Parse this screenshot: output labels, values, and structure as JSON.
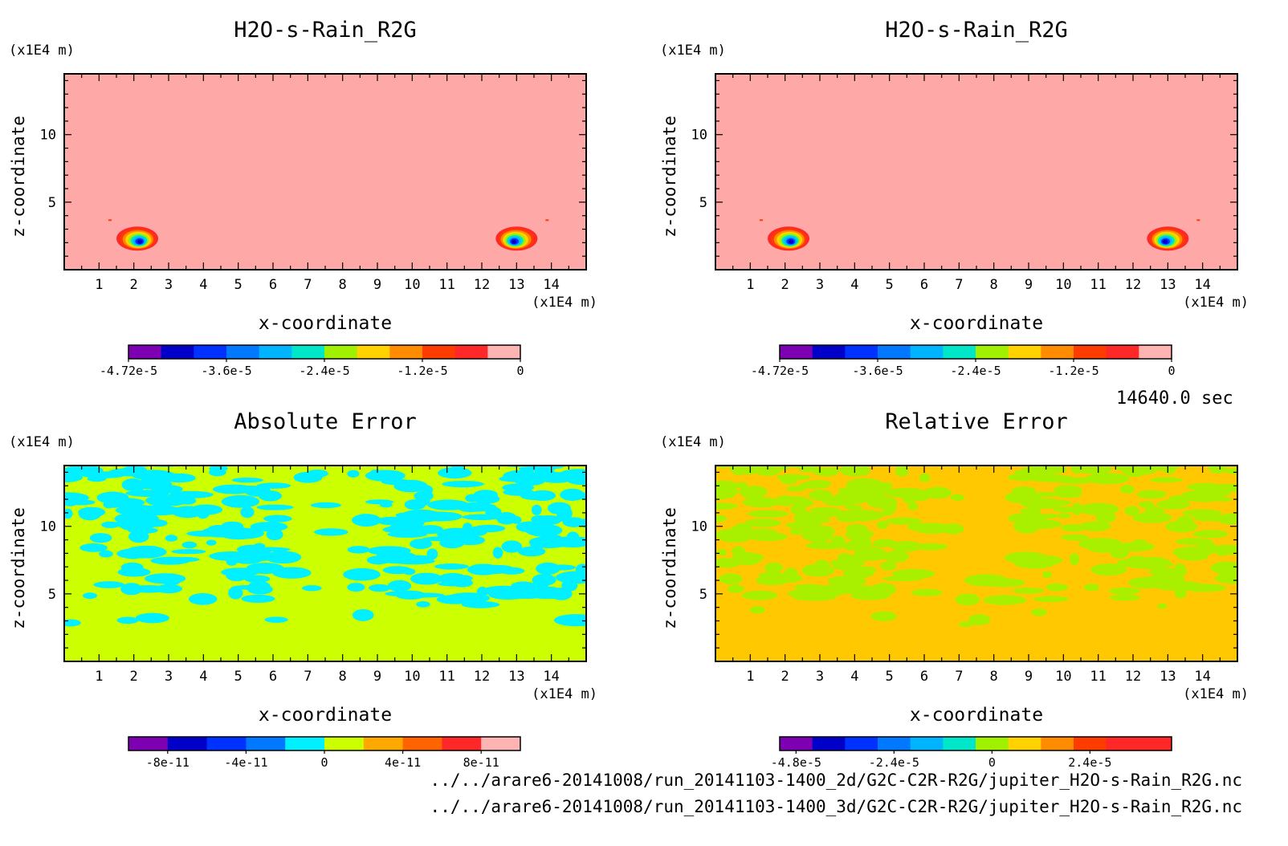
{
  "time_label": "14640.0 sec",
  "footer": {
    "path_2d": "../../arare6-20141008/run_20141103-1400_2d/G2C-C2R-R2G/jupiter_H2O-s-Rain_R2G.nc",
    "path_3d": "../../arare6-20141008/run_20141103-1400_3d/G2C-C2R-R2G/jupiter_H2O-s-Rain_R2G.nc"
  },
  "chart_data": [
    {
      "type": "heatmap",
      "title": "H2O-s-Rain_R2G",
      "xlabel": "x-coordinate",
      "ylabel": "z-coordinate",
      "x_unit": "(x1E4 m)",
      "y_unit": "(x1E4 m)",
      "xlim": [
        0,
        15
      ],
      "ylim": [
        0,
        14.5
      ],
      "x_ticks": [
        "1",
        "2",
        "3",
        "4",
        "5",
        "6",
        "7",
        "8",
        "9",
        "10",
        "11",
        "12",
        "13",
        "14"
      ],
      "y_ticks": [
        "5",
        "10"
      ],
      "background_color": "#ffa8a8",
      "features": [
        {
          "x": 2.1,
          "z": 2.3,
          "value": -4.72e-05
        },
        {
          "x": 13.0,
          "z": 2.3,
          "value": -4.72e-05
        }
      ],
      "colorbar": {
        "colors": [
          "#7d00b3",
          "#0000c8",
          "#0032ff",
          "#0078ff",
          "#00b4ff",
          "#00e6c8",
          "#a0f000",
          "#ffd200",
          "#ff8c00",
          "#ff3c00",
          "#ff2828",
          "#ffb4b4"
        ],
        "labels": [
          "-4.72e-5",
          "-3.6e-5",
          "-2.4e-5",
          "-1.2e-5",
          "0"
        ]
      }
    },
    {
      "type": "heatmap",
      "title": "H2O-s-Rain_R2G",
      "xlabel": "x-coordinate",
      "ylabel": "z-coordinate",
      "x_unit": "(x1E4 m)",
      "y_unit": "(x1E4 m)",
      "xlim": [
        0,
        15
      ],
      "ylim": [
        0,
        14.5
      ],
      "x_ticks": [
        "1",
        "2",
        "3",
        "4",
        "5",
        "6",
        "7",
        "8",
        "9",
        "10",
        "11",
        "12",
        "13",
        "14"
      ],
      "y_ticks": [
        "5",
        "10"
      ],
      "background_color": "#ffa8a8",
      "features": [
        {
          "x": 2.1,
          "z": 2.3,
          "value": -4.72e-05
        },
        {
          "x": 13.0,
          "z": 2.3,
          "value": -4.72e-05
        }
      ],
      "colorbar": {
        "colors": [
          "#7d00b3",
          "#0000c8",
          "#0032ff",
          "#0078ff",
          "#00b4ff",
          "#00e6c8",
          "#a0f000",
          "#ffd200",
          "#ff8c00",
          "#ff3c00",
          "#ff2828",
          "#ffb4b4"
        ],
        "labels": [
          "-4.72e-5",
          "-3.6e-5",
          "-2.4e-5",
          "-1.2e-5",
          "0"
        ]
      }
    },
    {
      "type": "heatmap",
      "title": "Absolute Error",
      "xlabel": "x-coordinate",
      "ylabel": "z-coordinate",
      "x_unit": "(x1E4 m)",
      "y_unit": "(x1E4 m)",
      "xlim": [
        0,
        15
      ],
      "ylim": [
        0,
        14.5
      ],
      "x_ticks": [
        "1",
        "2",
        "3",
        "4",
        "5",
        "6",
        "7",
        "8",
        "9",
        "10",
        "11",
        "12",
        "13",
        "14"
      ],
      "y_ticks": [
        "5",
        "10"
      ],
      "background_color": "#ccff00",
      "pattern_color": "#00f0ff",
      "colorbar": {
        "colors": [
          "#7d00b3",
          "#0000c8",
          "#0032ff",
          "#0078ff",
          "#00f0ff",
          "#ccff00",
          "#ffa800",
          "#ff6400",
          "#ff2828",
          "#ffb4b4"
        ],
        "labels": [
          "-8e-11",
          "-4e-11",
          "0",
          "4e-11",
          "8e-11"
        ]
      }
    },
    {
      "type": "heatmap",
      "title": "Relative Error",
      "xlabel": "x-coordinate",
      "ylabel": "z-coordinate",
      "x_unit": "(x1E4 m)",
      "y_unit": "(x1E4 m)",
      "xlim": [
        0,
        15
      ],
      "ylim": [
        0,
        14.5
      ],
      "x_ticks": [
        "1",
        "2",
        "3",
        "4",
        "5",
        "6",
        "7",
        "8",
        "9",
        "10",
        "11",
        "12",
        "13",
        "14"
      ],
      "y_ticks": [
        "5",
        "10"
      ],
      "background_color": "#ffc800",
      "pattern_color": "#a8f000",
      "colorbar": {
        "colors": [
          "#7d00b3",
          "#0000c8",
          "#0032ff",
          "#0078ff",
          "#00b4ff",
          "#00e6c8",
          "#a0f000",
          "#ffd200",
          "#ff8c00",
          "#ff3c00",
          "#ff2828",
          "#ff2828"
        ],
        "labels": [
          "-4.8e-5",
          "-2.4e-5",
          "0",
          "2.4e-5"
        ]
      }
    }
  ]
}
